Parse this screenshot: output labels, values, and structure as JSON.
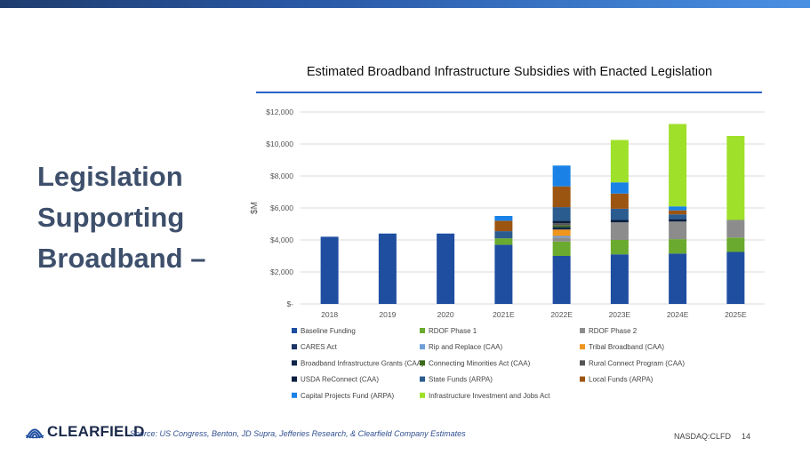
{
  "heading_lines": [
    "Legislation",
    "Supporting",
    "Broadband –"
  ],
  "footer": {
    "logo_text": "CLEARFIELD",
    "source": "Source:  US Congress, Benton, JD Supra, Jefferies Research, & Clearfield Company Estimates",
    "ticker": "NASDAQ:CLFD",
    "page_number": "14"
  },
  "chart_data": {
    "type": "bar",
    "stacked": true,
    "title": "Estimated Broadband Infrastructure Subsidies with Enacted Legislation",
    "xlabel": "",
    "ylabel": "$M",
    "ylim": [
      0,
      12000
    ],
    "yticks": [
      0,
      2000,
      4000,
      6000,
      8000,
      10000,
      12000
    ],
    "ytick_labels": [
      "$-",
      "$2,000",
      "$4,000",
      "$6,000",
      "$8,000",
      "$10,000",
      "$12,000"
    ],
    "grid": true,
    "legend_position": "bottom",
    "categories": [
      "2018",
      "2019",
      "2020",
      "2021E",
      "2022E",
      "2023E",
      "2024E",
      "2025E"
    ],
    "series": [
      {
        "name": "Baseline Funding",
        "color": "#1f4ea1",
        "values": [
          4200,
          4400,
          4400,
          3700,
          3000,
          3100,
          3150,
          3250
        ]
      },
      {
        "name": "RDOF Phase 1",
        "color": "#6aaa2e",
        "values": [
          0,
          0,
          0,
          400,
          900,
          900,
          900,
          900
        ]
      },
      {
        "name": "RDOF Phase 2",
        "color": "#8c8c8c",
        "values": [
          0,
          0,
          0,
          0,
          250,
          1100,
          1100,
          1100
        ]
      },
      {
        "name": "CARES Act",
        "color": "#1c3466",
        "values": [
          0,
          0,
          0,
          0,
          0,
          0,
          0,
          0
        ]
      },
      {
        "name": "Rip and Replace (CAA)",
        "color": "#6f9fd8",
        "values": [
          0,
          0,
          0,
          0,
          100,
          0,
          0,
          0
        ]
      },
      {
        "name": "Tribal Broadband (CAA)",
        "color": "#f0961e",
        "values": [
          0,
          0,
          0,
          0,
          400,
          0,
          0,
          0
        ]
      },
      {
        "name": "Broadband Infrastructure Grants (CAA)",
        "color": "#0e2448",
        "values": [
          0,
          0,
          0,
          0,
          150,
          0,
          0,
          0
        ]
      },
      {
        "name": "Connecting Minorities Act (CAA)",
        "color": "#3d6b1a",
        "values": [
          0,
          0,
          0,
          0,
          100,
          0,
          0,
          0
        ]
      },
      {
        "name": "Rural Connect Program (CAA)",
        "color": "#555555",
        "values": [
          0,
          0,
          0,
          0,
          150,
          0,
          0,
          0
        ]
      },
      {
        "name": "USDA ReConnect (CAA)",
        "color": "#0b1f3f",
        "values": [
          0,
          0,
          0,
          0,
          150,
          150,
          150,
          0
        ]
      },
      {
        "name": "State Funds (ARPA)",
        "color": "#2b5c8f",
        "values": [
          0,
          0,
          0,
          450,
          850,
          700,
          300,
          0
        ]
      },
      {
        "name": "Local Funds (ARPA)",
        "color": "#9c5511",
        "values": [
          0,
          0,
          0,
          650,
          1300,
          950,
          250,
          0
        ]
      },
      {
        "name": "Capital Projects Fund (ARPA)",
        "color": "#1a82e6",
        "values": [
          0,
          0,
          0,
          300,
          1300,
          700,
          250,
          0
        ]
      },
      {
        "name": "Infrastructure Investment and Jobs Act",
        "color": "#9fe02a",
        "values": [
          0,
          0,
          0,
          0,
          0,
          2650,
          5150,
          5250
        ]
      }
    ]
  }
}
